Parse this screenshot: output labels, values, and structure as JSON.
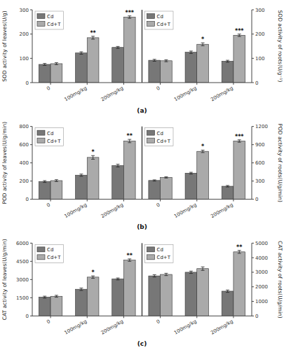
{
  "chart_data": [
    {
      "type": "bar",
      "title": "(a)",
      "ylabel": "SOD activity of leaves(U/g)",
      "y2label": "SOD activity of roots(U/g⁻¹)",
      "categories": [
        "0",
        "100mg/kg",
        "200mg/kg",
        "0",
        "100mg/kg",
        "200mg/kg"
      ],
      "series": [
        {
          "name": "Cd",
          "color": "#777777",
          "axis": "y",
          "values": [
            75,
            122,
            145,
            null,
            null,
            null
          ],
          "errors": [
            4,
            5,
            4,
            null,
            null,
            null
          ]
        },
        {
          "name": "Cd+T",
          "color": "#aaaaaa",
          "axis": "y",
          "values": [
            78,
            185,
            270,
            null,
            null,
            null
          ],
          "errors": [
            4,
            6,
            5,
            null,
            null,
            null
          ],
          "annotations": [
            null,
            "**",
            "***",
            null,
            null,
            null
          ]
        },
        {
          "name": "Cd",
          "color": "#777777",
          "axis": "y2",
          "values": [
            null,
            null,
            null,
            92,
            125,
            88
          ],
          "errors": [
            null,
            null,
            null,
            4,
            5,
            4
          ]
        },
        {
          "name": "Cd+T",
          "color": "#aaaaaa",
          "axis": "y2",
          "values": [
            null,
            null,
            null,
            90,
            158,
            195
          ],
          "errors": [
            null,
            null,
            null,
            4,
            6,
            5
          ],
          "annotations": [
            null,
            null,
            null,
            null,
            "*",
            "***"
          ]
        }
      ],
      "ylim": [
        0,
        300
      ],
      "yticks": [
        0,
        100,
        200,
        300
      ],
      "y2lim": [
        0,
        300
      ],
      "y2ticks": [
        0,
        100,
        200,
        300
      ],
      "grid": false,
      "legend": "upper left"
    },
    {
      "type": "bar",
      "title": "(b)",
      "ylabel": "POD activity of leaves(U/g/min)",
      "y2label": "POD activity of roots(U/g/min)",
      "categories": [
        "0",
        "100mg/kg",
        "200mg/kg",
        "0",
        "100mg/kg",
        "200mg/kg"
      ],
      "series": [
        {
          "name": "Cd",
          "color": "#777777",
          "axis": "y",
          "values": [
            195,
            265,
            370,
            null,
            null,
            null
          ],
          "errors": [
            10,
            12,
            15,
            null,
            null,
            null
          ]
        },
        {
          "name": "Cd+T",
          "color": "#aaaaaa",
          "axis": "y",
          "values": [
            205,
            460,
            640,
            null,
            null,
            null
          ],
          "errors": [
            10,
            20,
            18,
            null,
            null,
            null
          ],
          "annotations": [
            null,
            "*",
            "**",
            null,
            null,
            null
          ]
        },
        {
          "name": "Cd",
          "color": "#777777",
          "axis": "y2",
          "values": [
            null,
            null,
            null,
            310,
            430,
            215
          ],
          "errors": [
            null,
            null,
            null,
            10,
            15,
            12
          ]
        },
        {
          "name": "Cd+T",
          "color": "#aaaaaa",
          "axis": "y2",
          "values": [
            null,
            null,
            null,
            360,
            790,
            960
          ],
          "errors": [
            null,
            null,
            null,
            10,
            20,
            20
          ],
          "annotations": [
            null,
            null,
            null,
            null,
            "*",
            "***"
          ]
        }
      ],
      "ylim": [
        0,
        800
      ],
      "yticks": [
        0,
        200,
        400,
        600,
        800
      ],
      "y2lim": [
        0,
        1200
      ],
      "y2ticks": [
        0,
        300,
        600,
        900,
        1200
      ],
      "grid": false,
      "legend": "upper left"
    },
    {
      "type": "bar",
      "title": "(c)",
      "ylabel": "CAT activity of leaves(U/g/min)",
      "y2label": "CAT activity of roots(U/g/min)",
      "categories": [
        "0",
        "100mg/kg",
        "200mg/kg",
        "0",
        "100mg/kg",
        "200mg/kg"
      ],
      "series": [
        {
          "name": "Cd",
          "color": "#777777",
          "axis": "y",
          "values": [
            1550,
            2200,
            3050,
            null,
            null,
            null
          ],
          "errors": [
            80,
            100,
            80,
            null,
            null,
            null
          ]
        },
        {
          "name": "Cd+T",
          "color": "#aaaaaa",
          "axis": "y",
          "values": [
            1620,
            3200,
            4600,
            null,
            null,
            null
          ],
          "errors": [
            80,
            100,
            100,
            null,
            null,
            null
          ],
          "annotations": [
            null,
            "*",
            "**",
            null,
            null,
            null
          ]
        },
        {
          "name": "Cd",
          "color": "#777777",
          "axis": "y2",
          "values": [
            null,
            null,
            null,
            2750,
            3000,
            1700
          ],
          "errors": [
            null,
            null,
            null,
            80,
            80,
            80
          ]
        },
        {
          "name": "Cd+T",
          "color": "#aaaaaa",
          "axis": "y2",
          "values": [
            null,
            null,
            null,
            2850,
            3250,
            4400
          ],
          "errors": [
            null,
            null,
            null,
            80,
            120,
            100
          ],
          "annotations": [
            null,
            null,
            null,
            null,
            null,
            "**"
          ]
        }
      ],
      "ylim": [
        0,
        6000
      ],
      "yticks": [
        0,
        1500,
        3000,
        4500,
        6000
      ],
      "y2lim": [
        0,
        5000
      ],
      "y2ticks": [
        0,
        1000,
        2000,
        3000,
        4000,
        5000
      ],
      "grid": false,
      "legend": "upper left"
    }
  ]
}
